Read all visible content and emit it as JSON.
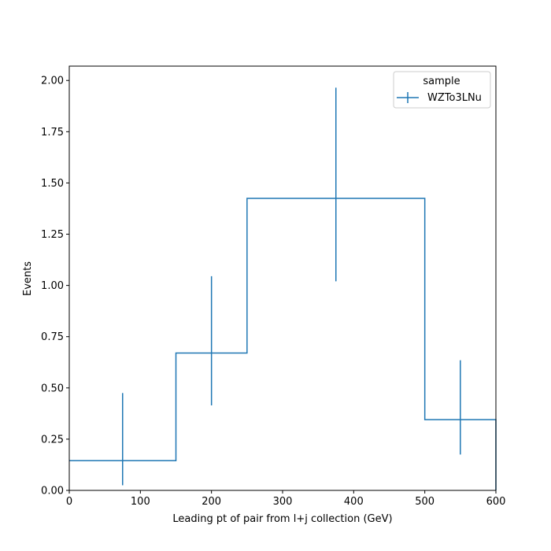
{
  "chart_data": {
    "type": "histogram",
    "title": "",
    "xlabel": "Leading pt of pair from l+j collection (GeV)",
    "ylabel": "Events",
    "xlim": [
      0,
      600
    ],
    "ylim": [
      0,
      2.07
    ],
    "x_ticks": [
      0,
      100,
      200,
      300,
      400,
      500,
      600
    ],
    "y_ticks": [
      0,
      0.25,
      0.5,
      0.75,
      1.0,
      1.25,
      1.5,
      1.75,
      2.0
    ],
    "x_tick_labels": [
      "0",
      "100",
      "200",
      "300",
      "400",
      "500",
      "600"
    ],
    "y_tick_labels": [
      "0.00",
      "0.25",
      "0.50",
      "0.75",
      "1.00",
      "1.25",
      "1.50",
      "1.75",
      "2.00"
    ],
    "grid": false,
    "legend": {
      "title": "sample",
      "position": "top-right"
    },
    "series": [
      {
        "name": "WZTo3LNu",
        "color": "#1f77b4",
        "bin_edges": [
          0,
          150,
          250,
          500,
          600
        ],
        "values": [
          0.145,
          0.67,
          1.425,
          0.345
        ],
        "bin_centers": [
          75,
          200,
          375,
          550
        ],
        "err_low": [
          0.025,
          0.415,
          1.02,
          0.175
        ],
        "err_high": [
          0.475,
          1.045,
          1.965,
          0.635
        ]
      }
    ]
  }
}
